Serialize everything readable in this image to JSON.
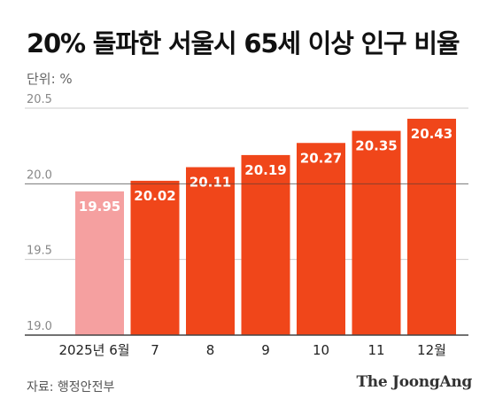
{
  "header": {
    "title": "20% 돌파한 서울시 65세 이상 인구 비율",
    "unit": "단위: %"
  },
  "footer": {
    "source": "자료: 행정안전부",
    "brand": "The JoongAng"
  },
  "colors": {
    "first_bar": "#f5a0a0",
    "bar": "#f0461a",
    "grid": "#cccccc",
    "axis": "#444444"
  },
  "chart_data": {
    "type": "bar",
    "title": "20% 돌파한 서울시 65세 이상 인구 비율",
    "xlabel": "",
    "ylabel": "",
    "categories": [
      "2025년 6월",
      "7",
      "8",
      "9",
      "10",
      "11",
      "12월"
    ],
    "values": [
      19.95,
      20.02,
      20.11,
      20.19,
      20.27,
      20.35,
      20.43
    ],
    "value_labels": [
      "19.95",
      "20.02",
      "20.11",
      "20.19",
      "20.27",
      "20.35",
      "20.43"
    ],
    "yticks": [
      19.0,
      19.5,
      20.0,
      20.5
    ],
    "ytick_labels": [
      "19.0",
      "19.5",
      "20.0",
      "20.5"
    ],
    "ylim": [
      19.0,
      20.5
    ],
    "highlight_line": 20.0,
    "grid": true,
    "legend": "none"
  }
}
